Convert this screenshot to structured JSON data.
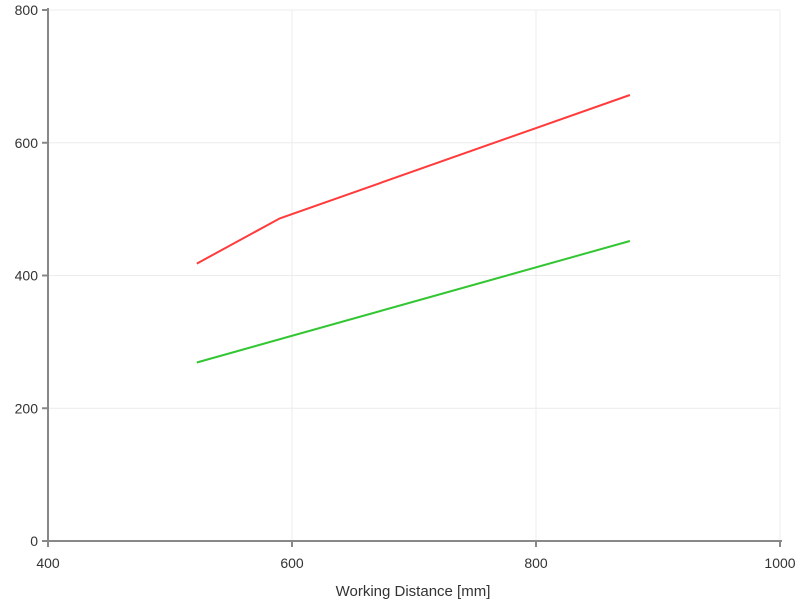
{
  "chart_data": {
    "type": "line",
    "title": "",
    "xlabel": "Working Distance [mm]",
    "ylabel": "",
    "xlim": [
      400,
      1000
    ],
    "ylim": [
      0,
      800
    ],
    "x_ticks": [
      400,
      600,
      800,
      1000
    ],
    "y_ticks": [
      0,
      200,
      400,
      600,
      800
    ],
    "grid": true,
    "series": [
      {
        "color": "#ff3b3b",
        "points": [
          [
            522,
            418
          ],
          [
            590,
            486
          ],
          [
            877,
            672
          ]
        ]
      },
      {
        "color": "#33c633",
        "points": [
          [
            522,
            269
          ],
          [
            877,
            452
          ]
        ]
      }
    ]
  }
}
